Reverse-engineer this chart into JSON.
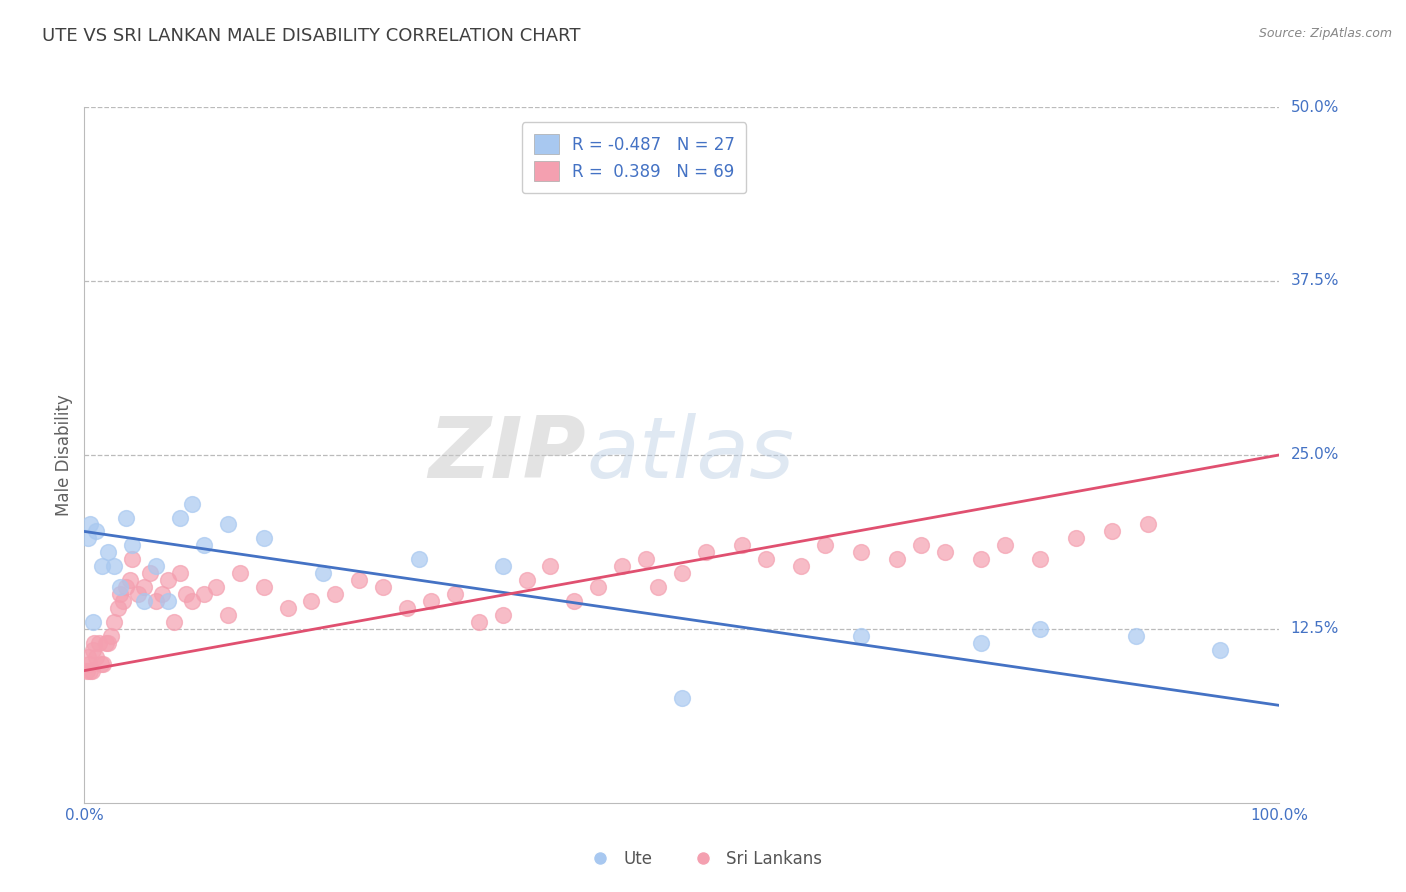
{
  "title": "UTE VS SRI LANKAN MALE DISABILITY CORRELATION CHART",
  "source": "Source: ZipAtlas.com",
  "ylabel": "Male Disability",
  "xlim": [
    0,
    100
  ],
  "ylim": [
    0,
    50
  ],
  "xticks": [
    0,
    100
  ],
  "xtick_labels": [
    "0.0%",
    "100.0%"
  ],
  "yticks": [
    12.5,
    25.0,
    37.5,
    50.0
  ],
  "ytick_labels": [
    "12.5%",
    "25.0%",
    "37.5%",
    "50.0%"
  ],
  "legend_labels": [
    "Ute",
    "Sri Lankans"
  ],
  "ute_R": -0.487,
  "ute_N": 27,
  "srilanka_R": 0.389,
  "srilanka_N": 69,
  "ute_color": "#a8c8f0",
  "ute_line_color": "#4472c4",
  "srilanka_color": "#f4a0b0",
  "srilanka_line_color": "#e05070",
  "background_color": "#ffffff",
  "grid_color": "#bbbbbb",
  "title_color": "#404040",
  "title_fontsize": 13,
  "axis_label_color": "#606060",
  "tick_label_color": "#4472c4",
  "watermark_zip": "ZIP",
  "watermark_atlas": "atlas",
  "ute_x": [
    0.3,
    0.5,
    0.7,
    1.0,
    1.5,
    2.0,
    2.5,
    3.0,
    3.5,
    4.0,
    5.0,
    6.0,
    7.0,
    8.0,
    9.0,
    10.0,
    12.0,
    15.0,
    20.0,
    28.0,
    35.0,
    50.0,
    65.0,
    75.0,
    80.0,
    88.0,
    95.0
  ],
  "ute_y": [
    19.0,
    20.0,
    13.0,
    19.5,
    17.0,
    18.0,
    17.0,
    15.5,
    20.5,
    18.5,
    14.5,
    17.0,
    14.5,
    20.5,
    21.5,
    18.5,
    20.0,
    19.0,
    16.5,
    17.5,
    17.0,
    7.5,
    12.0,
    11.5,
    12.5,
    12.0,
    11.0
  ],
  "srilanka_x": [
    0.2,
    0.3,
    0.4,
    0.5,
    0.6,
    0.7,
    0.8,
    1.0,
    1.2,
    1.4,
    1.6,
    1.8,
    2.0,
    2.2,
    2.5,
    2.8,
    3.0,
    3.2,
    3.5,
    3.8,
    4.0,
    4.5,
    5.0,
    5.5,
    6.0,
    6.5,
    7.0,
    7.5,
    8.0,
    8.5,
    9.0,
    10.0,
    11.0,
    12.0,
    13.0,
    15.0,
    17.0,
    19.0,
    21.0,
    23.0,
    25.0,
    27.0,
    29.0,
    31.0,
    33.0,
    35.0,
    37.0,
    39.0,
    41.0,
    43.0,
    45.0,
    47.0,
    48.0,
    50.0,
    52.0,
    55.0,
    57.0,
    60.0,
    62.0,
    65.0,
    68.0,
    70.0,
    72.0,
    75.0,
    77.0,
    80.0,
    83.0,
    86.0,
    89.0
  ],
  "srilanka_y": [
    9.5,
    10.5,
    10.0,
    9.5,
    9.5,
    11.0,
    11.5,
    10.5,
    11.5,
    10.0,
    10.0,
    11.5,
    11.5,
    12.0,
    13.0,
    14.0,
    15.0,
    14.5,
    15.5,
    16.0,
    17.5,
    15.0,
    15.5,
    16.5,
    14.5,
    15.0,
    16.0,
    13.0,
    16.5,
    15.0,
    14.5,
    15.0,
    15.5,
    13.5,
    16.5,
    15.5,
    14.0,
    14.5,
    15.0,
    16.0,
    15.5,
    14.0,
    14.5,
    15.0,
    13.0,
    13.5,
    16.0,
    17.0,
    14.5,
    15.5,
    17.0,
    17.5,
    15.5,
    16.5,
    18.0,
    18.5,
    17.5,
    17.0,
    18.5,
    18.0,
    17.5,
    18.5,
    18.0,
    17.5,
    18.5,
    17.5,
    19.0,
    19.5,
    20.0
  ],
  "ute_trend_x0": 0,
  "ute_trend_y0": 19.5,
  "ute_trend_x1": 100,
  "ute_trend_y1": 7.0,
  "sl_trend_x0": 0,
  "sl_trend_y0": 9.5,
  "sl_trend_x1": 100,
  "sl_trend_y1": 25.0
}
